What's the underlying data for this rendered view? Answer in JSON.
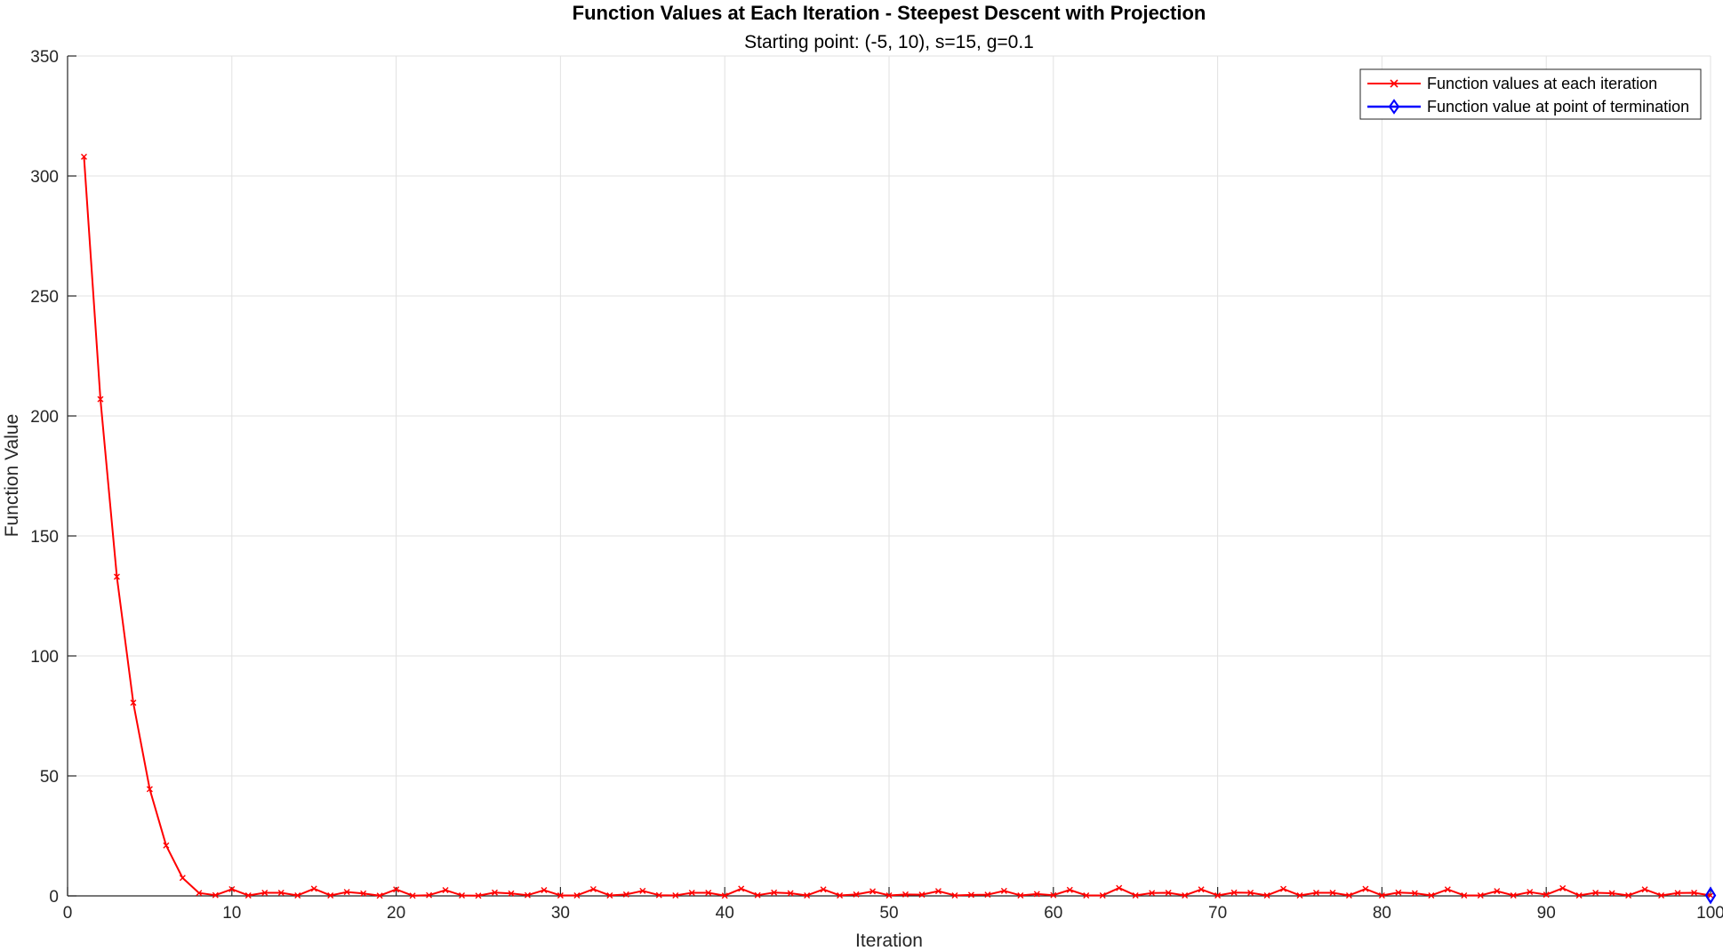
{
  "chart_data": {
    "type": "line",
    "title": "Function Values at Each Iteration - Steepest Descent with Projection",
    "subtitle": "Starting point: (-5, 10), s=15, g=0.1",
    "xlabel": "Iteration",
    "ylabel": "Function Value",
    "xlim": [
      0,
      100
    ],
    "ylim": [
      0,
      350
    ],
    "xticks": [
      0,
      10,
      20,
      30,
      40,
      50,
      60,
      70,
      80,
      90,
      100
    ],
    "yticks": [
      0,
      50,
      100,
      150,
      200,
      250,
      300,
      350
    ],
    "grid": true,
    "legend_position": "top-right",
    "series": [
      {
        "name": "Function values at each iteration",
        "color": "#ff0000",
        "marker": "x",
        "x": [
          1,
          2,
          3,
          4,
          5,
          6,
          7,
          8,
          9,
          10,
          11,
          12,
          13,
          14,
          15,
          16,
          17,
          18,
          19,
          20,
          21,
          22,
          23,
          24,
          25,
          26,
          27,
          28,
          29,
          30,
          31,
          32,
          33,
          34,
          35,
          36,
          37,
          38,
          39,
          40,
          41,
          42,
          43,
          44,
          45,
          46,
          47,
          48,
          49,
          50,
          51,
          52,
          53,
          54,
          55,
          56,
          57,
          58,
          59,
          60,
          61,
          62,
          63,
          64,
          65,
          66,
          67,
          68,
          69,
          70,
          71,
          72,
          73,
          74,
          75,
          76,
          77,
          78,
          79,
          80,
          81,
          82,
          83,
          84,
          85,
          86,
          87,
          88,
          89,
          90,
          91,
          92,
          93,
          94,
          95,
          96,
          97,
          98,
          99,
          100
        ],
        "y": [
          308,
          207,
          133,
          80.5,
          44.5,
          21,
          7.5,
          1.2,
          0.3,
          2.8,
          0.2,
          1.3,
          1.3,
          0.2,
          3,
          0.2,
          1.6,
          1,
          0.1,
          2.7,
          0.1,
          0.3,
          2.4,
          0.2,
          0.1,
          1.4,
          1,
          0.3,
          2.4,
          0.2,
          0.2,
          2.8,
          0.2,
          0.6,
          2.1,
          0.3,
          0.2,
          1.3,
          1.3,
          0.1,
          3,
          0.3,
          1.4,
          1.1,
          0.2,
          2.7,
          0.2,
          0.6,
          1.9,
          0.2,
          0.6,
          0.5,
          2,
          0.2,
          0.4,
          0.5,
          2.1,
          0.2,
          0.8,
          0.3,
          2.5,
          0.2,
          0.2,
          3.3,
          0.2,
          1.2,
          1.3,
          0.2,
          2.7,
          0.2,
          1.4,
          1.3,
          0.2,
          2.9,
          0.2,
          1.3,
          1.3,
          0.2,
          2.9,
          0.2,
          1.4,
          1.1,
          0.2,
          2.7,
          0.2,
          0.2,
          2,
          0.2,
          1.6,
          0.5,
          3.2,
          0.2,
          1.3,
          1.1,
          0.2,
          2.7,
          0.2,
          1.2,
          1.3,
          0.2
        ]
      },
      {
        "name": "Function value at point of termination",
        "color": "#0000ff",
        "marker": "diamond",
        "x": [
          100
        ],
        "y": [
          0.2
        ]
      }
    ]
  }
}
